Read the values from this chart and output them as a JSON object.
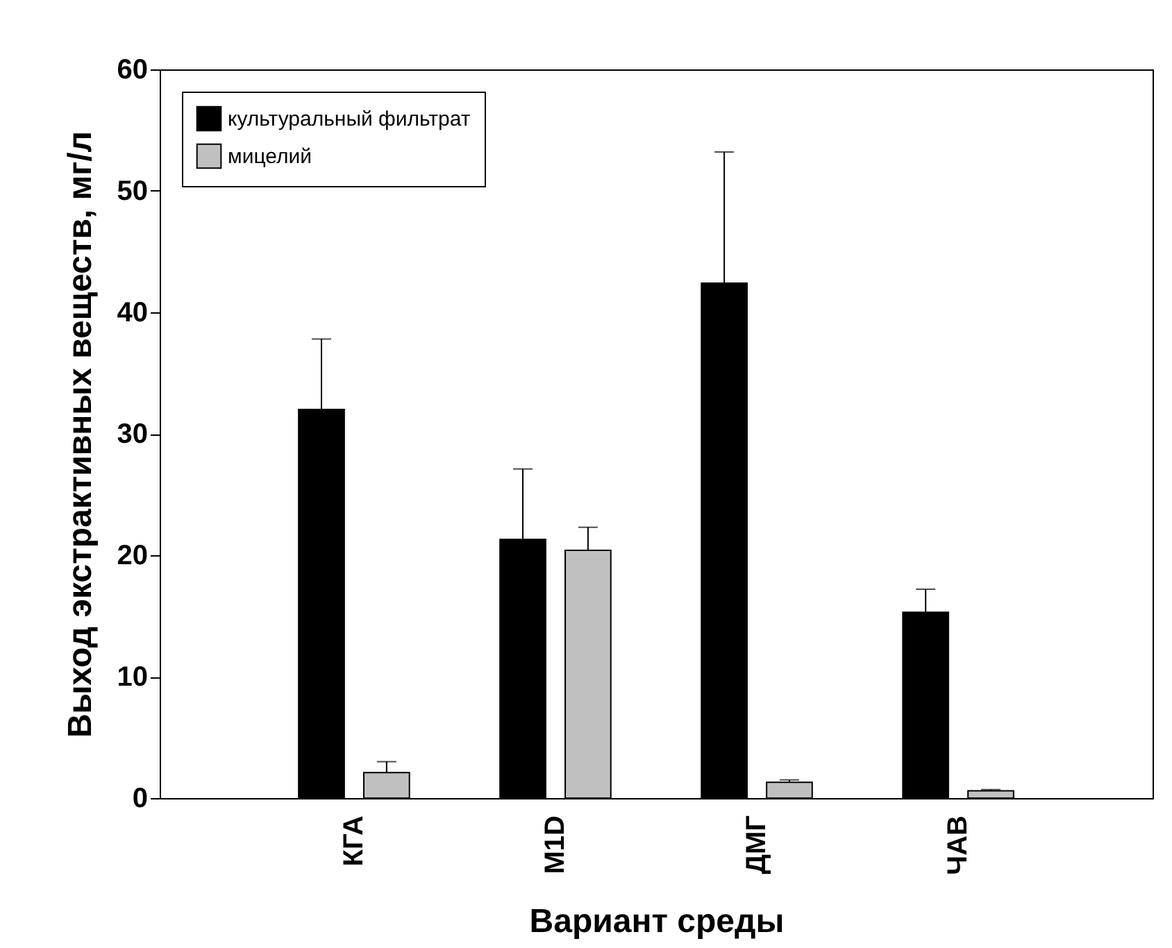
{
  "chart_data": {
    "type": "bar",
    "xlabel": "Вариант среды",
    "ylabel": "Выход экстрактивных веществ, мг/л",
    "categories": [
      "КГА",
      "M1D",
      "ДМГ",
      "ЧАВ"
    ],
    "series": [
      {
        "name": "культуральный фильтрат",
        "color": "#000000",
        "values": [
          32.0,
          21.3,
          42.4,
          15.3
        ],
        "errors": [
          [
            32.0,
            37.8
          ],
          [
            21.3,
            27.1
          ],
          [
            42.4,
            53.2
          ],
          [
            15.3,
            17.2
          ]
        ]
      },
      {
        "name": "мицелий",
        "color": "#c0c0c0",
        "values": [
          2.1,
          20.4,
          1.3,
          0.6
        ],
        "errors": [
          [
            2.1,
            3.0
          ],
          [
            20.4,
            22.3
          ],
          [
            1.3,
            1.5
          ],
          [
            0.6,
            0.7
          ]
        ]
      }
    ],
    "ylim": [
      0,
      60
    ],
    "yticks": [
      0,
      10,
      20,
      30,
      40,
      50,
      60
    ],
    "grid": false,
    "legend": "top left"
  }
}
